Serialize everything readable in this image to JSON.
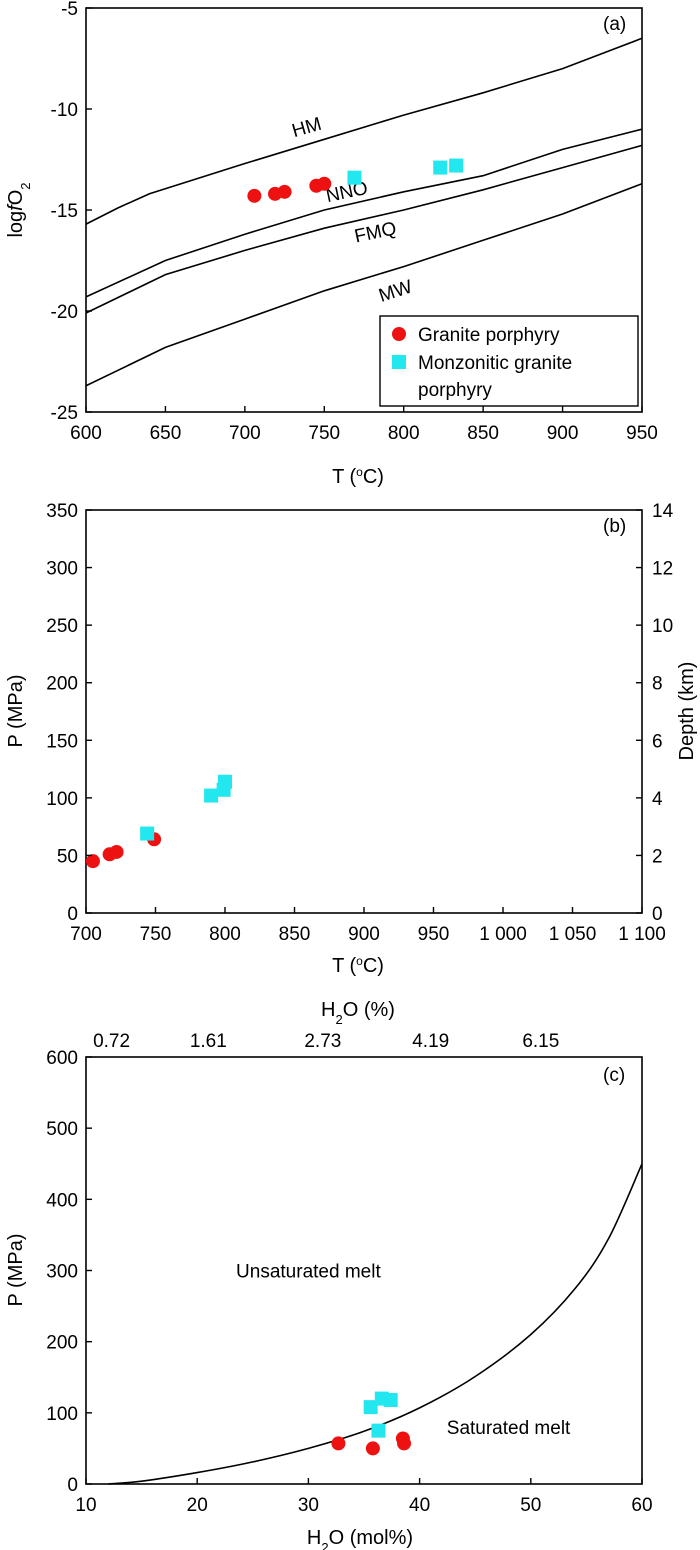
{
  "colors": {
    "granite": "#ee1111",
    "monzonitic": "#22e7ee"
  },
  "chart_data": [
    {
      "id": "a",
      "type": "scatter",
      "panel_label": "(a)",
      "xlabel": "T (°C)",
      "ylabel": "logfO₂",
      "xlim": [
        600,
        950
      ],
      "ylim": [
        -25,
        -5
      ],
      "xticks": [
        600,
        650,
        700,
        750,
        800,
        850,
        900,
        950
      ],
      "yticks": [
        -5,
        -10,
        -15,
        -20,
        -25
      ],
      "legend": {
        "position": "bottom-right",
        "entries": [
          {
            "label": "Granite porphyry",
            "lines": [
              "Granite porphyry"
            ],
            "marker": "circle",
            "color": "#ee1111"
          },
          {
            "label": "Monzonitic granite porphyry",
            "lines": [
              "Monzonitic granite",
              "porphyry"
            ],
            "marker": "square",
            "color": "#22e7ee"
          }
        ]
      },
      "buffer_lines": [
        {
          "name": "HM",
          "points": [
            [
              600,
              -15.7
            ],
            [
              620,
              -14.9
            ],
            [
              640,
              -14.2
            ],
            [
              700,
              -12.7
            ],
            [
              750,
              -11.5
            ],
            [
              800,
              -10.3
            ],
            [
              850,
              -9.2
            ],
            [
              900,
              -8.0
            ],
            [
              950,
              -6.5
            ]
          ]
        },
        {
          "name": "NNO",
          "points": [
            [
              600,
              -19.3
            ],
            [
              650,
              -17.5
            ],
            [
              700,
              -16.2
            ],
            [
              750,
              -15.0
            ],
            [
              800,
              -14.1
            ],
            [
              850,
              -13.3
            ],
            [
              900,
              -12.0
            ],
            [
              950,
              -11.0
            ]
          ]
        },
        {
          "name": "FMQ",
          "points": [
            [
              600,
              -20.1
            ],
            [
              650,
              -18.2
            ],
            [
              700,
              -17.0
            ],
            [
              750,
              -15.9
            ],
            [
              800,
              -15.0
            ],
            [
              850,
              -14.0
            ],
            [
              900,
              -12.9
            ],
            [
              950,
              -11.8
            ]
          ]
        },
        {
          "name": "MW",
          "points": [
            [
              600,
              -23.7
            ],
            [
              650,
              -21.8
            ],
            [
              700,
              -20.4
            ],
            [
              750,
              -19.0
            ],
            [
              800,
              -17.8
            ],
            [
              850,
              -16.5
            ],
            [
              900,
              -15.2
            ],
            [
              950,
              -13.7
            ]
          ]
        }
      ],
      "buffer_labels": [
        {
          "text": "HM",
          "x": 740,
          "y": -11.2
        },
        {
          "text": "NNO",
          "x": 765,
          "y": -14.4
        },
        {
          "text": "FMQ",
          "x": 783,
          "y": -16.4
        },
        {
          "text": "MW",
          "x": 796,
          "y": -19.3
        }
      ],
      "series": [
        {
          "name": "Granite porphyry",
          "marker": "circle",
          "points": [
            [
              706,
              -14.3
            ],
            [
              719,
              -14.2
            ],
            [
              725,
              -14.1
            ],
            [
              745,
              -13.8
            ],
            [
              750,
              -13.7
            ]
          ]
        },
        {
          "name": "Monzonitic granite porphyry",
          "marker": "square",
          "points": [
            [
              769,
              -13.4
            ],
            [
              823,
              -12.9
            ],
            [
              833,
              -12.8
            ]
          ]
        }
      ]
    },
    {
      "id": "b",
      "type": "scatter",
      "panel_label": "(b)",
      "xlabel": "T (°C)",
      "ylabel": "P (MPa)",
      "y2label": "Depth (km)",
      "xlim": [
        700,
        1100
      ],
      "ylim": [
        0,
        350
      ],
      "y2lim": [
        0,
        14
      ],
      "xticks": [
        700,
        750,
        800,
        850,
        900,
        950,
        1000,
        1050,
        1100
      ],
      "xticklabels": [
        "700",
        "750",
        "800",
        "850",
        "900",
        "950",
        "1 000",
        "1 050",
        "1 100"
      ],
      "yticks": [
        0,
        50,
        100,
        150,
        200,
        250,
        300,
        350
      ],
      "y2ticks": [
        0,
        2,
        4,
        6,
        8,
        10,
        12,
        14
      ],
      "series": [
        {
          "name": "Granite porphyry",
          "marker": "circle",
          "points": [
            [
              705,
              45
            ],
            [
              717,
              51
            ],
            [
              722,
              53
            ],
            [
              749,
              64
            ]
          ]
        },
        {
          "name": "Monzonitic granite porphyry",
          "marker": "square",
          "points": [
            [
              744,
              69
            ],
            [
              790,
              102
            ],
            [
              799,
              107
            ],
            [
              800,
              114
            ]
          ]
        }
      ]
    },
    {
      "id": "c",
      "type": "scatter",
      "panel_label": "(c)",
      "xlabel": "H₂O (mol%)",
      "x2label": "H₂O (%)",
      "ylabel": "P (MPa)",
      "xlim": [
        10,
        60
      ],
      "ylim": [
        0,
        600
      ],
      "xticks": [
        10,
        20,
        30,
        40,
        50,
        60
      ],
      "yticks": [
        0,
        100,
        200,
        300,
        400,
        500,
        600
      ],
      "top_axis_labels": [
        {
          "text": "0.72",
          "x": 12.3
        },
        {
          "text": "1.61",
          "x": 21.0
        },
        {
          "text": "2.73",
          "x": 31.3
        },
        {
          "text": "4.19",
          "x": 41.0
        },
        {
          "text": "6.15",
          "x": 50.9
        }
      ],
      "saturation_curve": [
        [
          12,
          0
        ],
        [
          15,
          4
        ],
        [
          20,
          16
        ],
        [
          25,
          31
        ],
        [
          30,
          50
        ],
        [
          35,
          74
        ],
        [
          40,
          107
        ],
        [
          45,
          151
        ],
        [
          50,
          210
        ],
        [
          54,
          275
        ],
        [
          57,
          345
        ],
        [
          60,
          450
        ]
      ],
      "region_labels": [
        {
          "text": "Unsaturated melt",
          "x": 30,
          "y": 300
        },
        {
          "text": "Saturated melt",
          "x": 48,
          "y": 80
        }
      ],
      "series": [
        {
          "name": "Granite porphyry",
          "marker": "circle",
          "points": [
            [
              32.7,
              57
            ],
            [
              35.8,
              50
            ],
            [
              38.5,
              64
            ],
            [
              38.6,
              57
            ]
          ]
        },
        {
          "name": "Monzonitic granite porphyry",
          "marker": "square",
          "points": [
            [
              35.6,
              108
            ],
            [
              36.3,
              75
            ],
            [
              36.6,
              120
            ],
            [
              37.4,
              118
            ]
          ]
        }
      ]
    }
  ]
}
